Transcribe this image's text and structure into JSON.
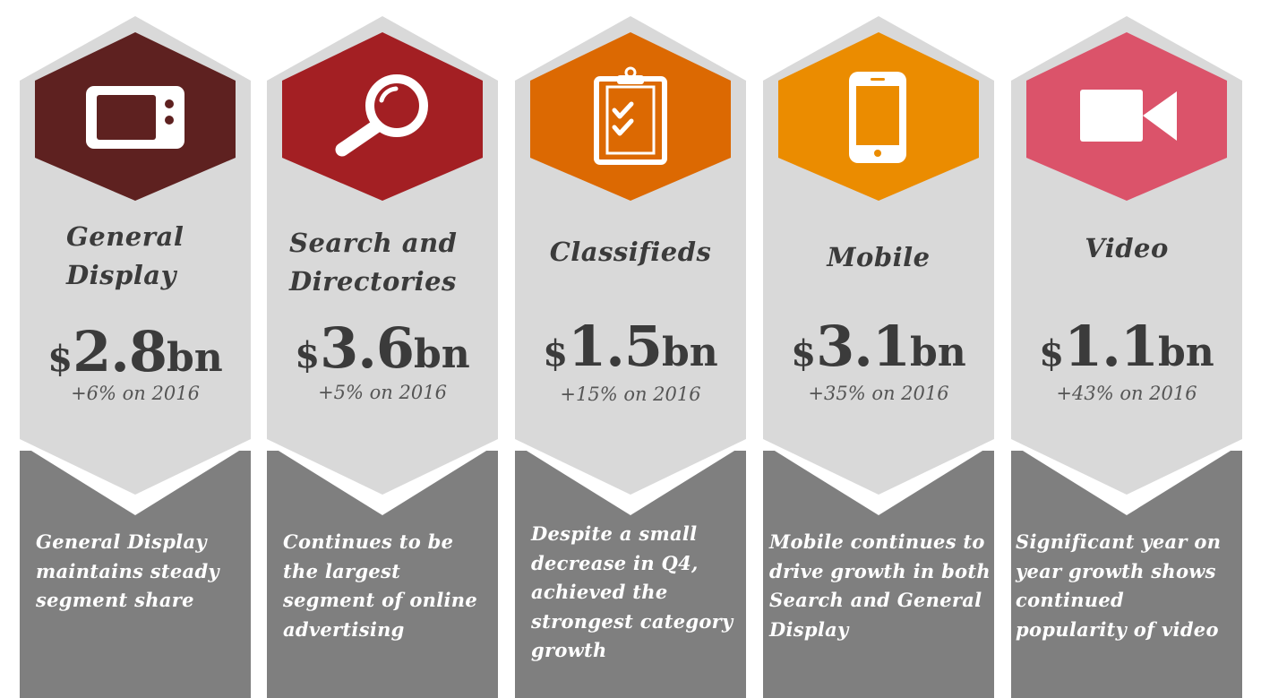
{
  "colors": {
    "card_background": "#d9d9d9",
    "description_panel": "#7f7f7f",
    "text_dark": "#3b3b3b",
    "text_white": "#ffffff"
  },
  "segments": [
    {
      "title_line1": "General",
      "title_line2": "Display",
      "currency": "$",
      "amount": "2.8",
      "unit": "bn",
      "growth": "+6% on 2016",
      "description": "General Display maintains steady segment share",
      "icon": "tv-icon",
      "color": "#5e2120"
    },
    {
      "title_line1": "Search and",
      "title_line2": "Directories",
      "currency": "$",
      "amount": "3.6",
      "unit": "bn",
      "growth": "+5% on 2016",
      "description": "Continues to be the largest segment of online advertising",
      "icon": "magnifier-icon",
      "color": "#a31f23"
    },
    {
      "title_line1": "Classifieds",
      "currency": "$",
      "amount": "1.5",
      "unit": "bn",
      "growth": "+15% on 2016",
      "description": "Despite a small decrease in Q4, achieved the strongest category growth",
      "icon": "clipboard-icon",
      "color": "#dc6902"
    },
    {
      "title_line1": "Mobile",
      "currency": "$",
      "amount": "3.1",
      "unit": "bn",
      "growth": "+35% on 2016",
      "description": "Mobile continues to drive growth in both Search and General Display",
      "icon": "smartphone-icon",
      "color": "#eb8c00"
    },
    {
      "title_line1": "Video",
      "currency": "$",
      "amount": "1.1",
      "unit": "bn",
      "growth": "+43% on 2016",
      "description": "Significant year on year growth shows continued popularity of video",
      "icon": "video-camera-icon",
      "color": "#db536a"
    }
  ]
}
